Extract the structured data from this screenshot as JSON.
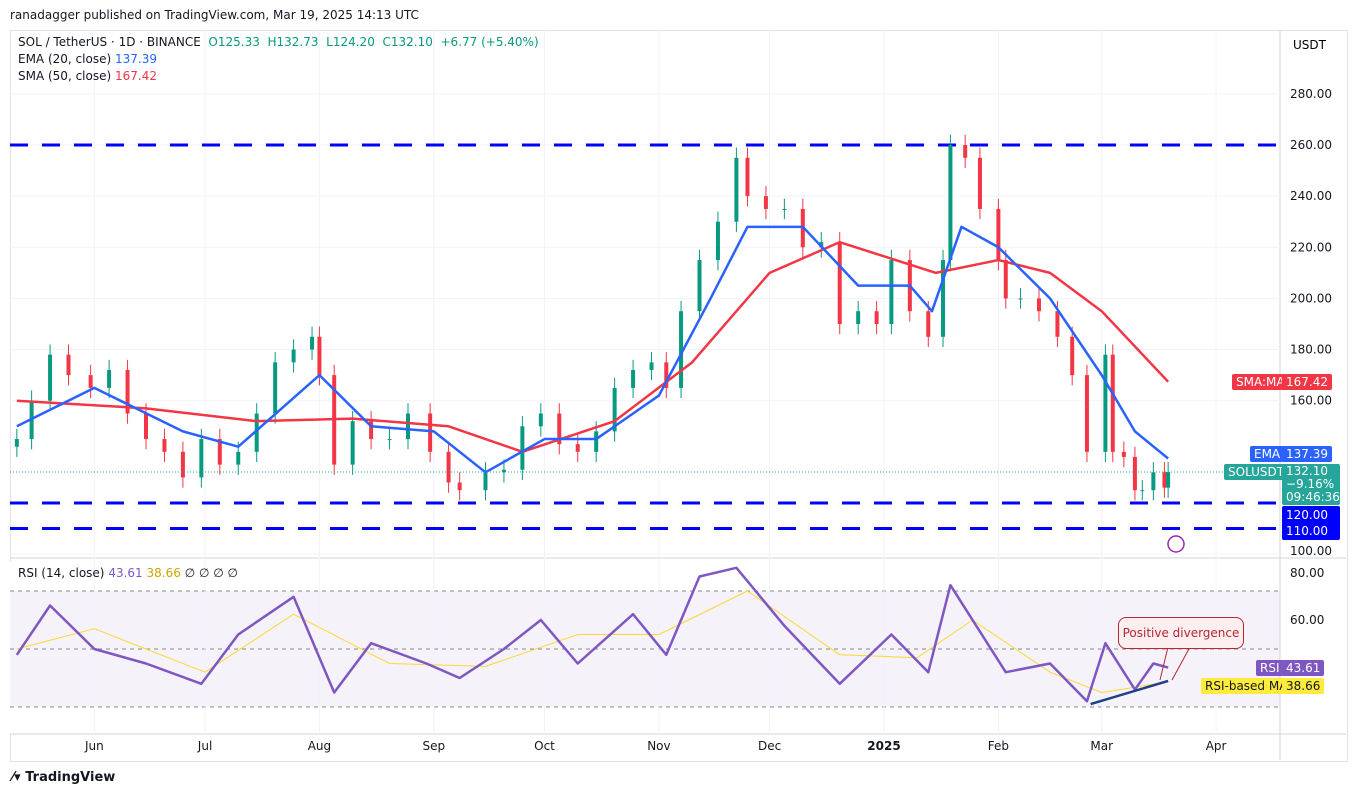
{
  "header": {
    "published": "ranadagger published on TradingView.com, Mar 19, 2025 14:13 UTC"
  },
  "legend": {
    "symbol": "SOL / TetherUS · 1D · BINANCE",
    "o": "O125.33",
    "h": "H132.73",
    "l": "L124.20",
    "c": "C132.10",
    "chg": "+6.77 (+5.40%)",
    "ema_label": "EMA (20, close)",
    "ema_val": "137.39",
    "sma_label": "SMA (50, close)",
    "sma_val": "167.42",
    "rsi_label": "RSI (14, close)",
    "rsi_val": "43.61",
    "rsi_ma_val": "38.66",
    "rsi_extra": "∅ ∅ ∅ ∅"
  },
  "axis": {
    "currency": "USDT"
  },
  "tags": {
    "sma_name": "SMA:MA",
    "sma": "167.42",
    "ema_name": "EMA",
    "ema": "137.39",
    "sym": "SOLUSDT",
    "price": "132.10",
    "pct": "−9.16%",
    "timer": "09:46:36",
    "lvl1": "120.00",
    "lvl2": "110.00",
    "rsi_name": "RSI",
    "rsi": "43.61",
    "rsima_name": "RSI-based MA",
    "rsima": "38.66"
  },
  "annotation": "Positive divergence",
  "brand": "TradingView",
  "colors": {
    "up": "#089981",
    "down": "#f23645",
    "ema": "#2962ff",
    "sma": "#f23645",
    "level": "#0000ff",
    "rsi": "#7e57c2",
    "rsi_ma": "#fdd835"
  },
  "chart_data": {
    "type": "candlestick",
    "price_ticks": [
      280,
      260,
      240,
      220,
      200,
      180,
      160,
      120,
      110,
      100
    ],
    "rsi_ticks": [
      80,
      60
    ],
    "x_ticks": [
      "Jun",
      "Jul",
      "Aug",
      "Sep",
      "Oct",
      "Nov",
      "Dec",
      "2025",
      "Feb",
      "Mar",
      "Apr"
    ],
    "levels": [
      260,
      120,
      110
    ],
    "closes": [
      [
        "2024-05-11",
        145
      ],
      [
        "2024-05-15",
        160
      ],
      [
        "2024-05-20",
        178
      ],
      [
        "2024-05-25",
        170
      ],
      [
        "2024-05-31",
        165
      ],
      [
        "2024-06-05",
        172
      ],
      [
        "2024-06-10",
        155
      ],
      [
        "2024-06-15",
        145
      ],
      [
        "2024-06-20",
        140
      ],
      [
        "2024-06-25",
        130
      ],
      [
        "2024-06-30",
        145
      ],
      [
        "2024-07-05",
        135
      ],
      [
        "2024-07-10",
        140
      ],
      [
        "2024-07-15",
        155
      ],
      [
        "2024-07-20",
        175
      ],
      [
        "2024-07-25",
        180
      ],
      [
        "2024-07-30",
        185
      ],
      [
        "2024-08-01",
        170
      ],
      [
        "2024-08-05",
        135
      ],
      [
        "2024-08-10",
        152
      ],
      [
        "2024-08-15",
        145
      ],
      [
        "2024-08-20",
        145
      ],
      [
        "2024-08-25",
        155
      ],
      [
        "2024-08-31",
        140
      ],
      [
        "2024-09-05",
        128
      ],
      [
        "2024-09-08",
        125
      ],
      [
        "2024-09-15",
        132
      ],
      [
        "2024-09-20",
        133
      ],
      [
        "2024-09-25",
        150
      ],
      [
        "2024-09-30",
        155
      ],
      [
        "2024-10-05",
        143
      ],
      [
        "2024-10-10",
        140
      ],
      [
        "2024-10-15",
        148
      ],
      [
        "2024-10-20",
        165
      ],
      [
        "2024-10-25",
        172
      ],
      [
        "2024-10-30",
        175
      ],
      [
        "2024-11-03",
        165
      ],
      [
        "2024-11-07",
        195
      ],
      [
        "2024-11-12",
        215
      ],
      [
        "2024-11-17",
        230
      ],
      [
        "2024-11-22",
        255
      ],
      [
        "2024-11-25",
        240
      ],
      [
        "2024-11-30",
        235
      ],
      [
        "2024-12-05",
        235
      ],
      [
        "2024-12-10",
        220
      ],
      [
        "2024-12-15",
        222
      ],
      [
        "2024-12-20",
        190
      ],
      [
        "2024-12-25",
        195
      ],
      [
        "2024-12-30",
        190
      ],
      [
        "2025-01-03",
        215
      ],
      [
        "2025-01-08",
        195
      ],
      [
        "2025-01-13",
        185
      ],
      [
        "2025-01-17",
        215
      ],
      [
        "2025-01-19",
        260
      ],
      [
        "2025-01-23",
        255
      ],
      [
        "2025-01-27",
        235
      ],
      [
        "2025-02-01",
        215
      ],
      [
        "2025-02-03",
        200
      ],
      [
        "2025-02-07",
        200
      ],
      [
        "2025-02-12",
        195
      ],
      [
        "2025-02-17",
        185
      ],
      [
        "2025-02-21",
        170
      ],
      [
        "2025-02-25",
        140
      ],
      [
        "2025-03-02",
        178
      ],
      [
        "2025-03-04",
        140
      ],
      [
        "2025-03-07",
        138
      ],
      [
        "2025-03-10",
        125
      ],
      [
        "2025-03-12",
        125
      ],
      [
        "2025-03-15",
        132
      ],
      [
        "2025-03-18",
        126
      ],
      [
        "2025-03-19",
        132.1
      ]
    ],
    "ema20": [
      [
        "2024-05-11",
        150
      ],
      [
        "2024-06-01",
        165
      ],
      [
        "2024-06-25",
        148
      ],
      [
        "2024-07-10",
        142
      ],
      [
        "2024-08-01",
        170
      ],
      [
        "2024-08-15",
        150
      ],
      [
        "2024-09-01",
        148
      ],
      [
        "2024-09-15",
        132
      ],
      [
        "2024-10-01",
        145
      ],
      [
        "2024-10-15",
        145
      ],
      [
        "2024-11-01",
        162
      ],
      [
        "2024-11-15",
        200
      ],
      [
        "2024-11-25",
        228
      ],
      [
        "2024-12-10",
        228
      ],
      [
        "2024-12-25",
        205
      ],
      [
        "2025-01-08",
        205
      ],
      [
        "2025-01-14",
        195
      ],
      [
        "2025-01-22",
        228
      ],
      [
        "2025-02-01",
        220
      ],
      [
        "2025-02-15",
        200
      ],
      [
        "2025-03-01",
        170
      ],
      [
        "2025-03-10",
        148
      ],
      [
        "2025-03-19",
        137.39
      ]
    ],
    "sma50": [
      [
        "2024-05-11",
        160
      ],
      [
        "2024-06-15",
        157
      ],
      [
        "2024-07-15",
        152
      ],
      [
        "2024-08-10",
        153
      ],
      [
        "2024-09-05",
        150
      ],
      [
        "2024-09-25",
        140
      ],
      [
        "2024-10-20",
        152
      ],
      [
        "2024-11-10",
        175
      ],
      [
        "2024-12-01",
        210
      ],
      [
        "2024-12-20",
        222
      ],
      [
        "2025-01-15",
        210
      ],
      [
        "2025-02-01",
        215
      ],
      [
        "2025-02-15",
        210
      ],
      [
        "2025-03-01",
        195
      ],
      [
        "2025-03-19",
        167.42
      ]
    ],
    "rsi": [
      [
        "2024-05-11",
        48
      ],
      [
        "2024-05-20",
        65
      ],
      [
        "2024-06-01",
        50
      ],
      [
        "2024-06-15",
        45
      ],
      [
        "2024-06-30",
        38
      ],
      [
        "2024-07-10",
        55
      ],
      [
        "2024-07-25",
        68
      ],
      [
        "2024-08-05",
        35
      ],
      [
        "2024-08-15",
        52
      ],
      [
        "2024-08-30",
        45
      ],
      [
        "2024-09-08",
        40
      ],
      [
        "2024-09-20",
        50
      ],
      [
        "2024-09-30",
        60
      ],
      [
        "2024-10-10",
        45
      ],
      [
        "2024-10-25",
        62
      ],
      [
        "2024-11-03",
        48
      ],
      [
        "2024-11-12",
        75
      ],
      [
        "2024-11-22",
        78
      ],
      [
        "2024-12-05",
        58
      ],
      [
        "2024-12-20",
        38
      ],
      [
        "2025-01-03",
        55
      ],
      [
        "2025-01-13",
        42
      ],
      [
        "2025-01-19",
        72
      ],
      [
        "2025-02-03",
        42
      ],
      [
        "2025-02-15",
        45
      ],
      [
        "2025-02-25",
        32
      ],
      [
        "2025-03-02",
        52
      ],
      [
        "2025-03-10",
        36
      ],
      [
        "2025-03-15",
        45
      ],
      [
        "2025-03-19",
        43.61
      ]
    ],
    "rsi_ma": [
      [
        "2024-05-11",
        50
      ],
      [
        "2024-06-01",
        57
      ],
      [
        "2024-07-01",
        42
      ],
      [
        "2024-07-25",
        62
      ],
      [
        "2024-08-20",
        45
      ],
      [
        "2024-09-15",
        44
      ],
      [
        "2024-10-10",
        55
      ],
      [
        "2024-11-01",
        55
      ],
      [
        "2024-11-25",
        70
      ],
      [
        "2024-12-20",
        48
      ],
      [
        "2025-01-10",
        47
      ],
      [
        "2025-01-25",
        60
      ],
      [
        "2025-02-15",
        42
      ],
      [
        "2025-03-01",
        35
      ],
      [
        "2025-03-19",
        38.66
      ]
    ],
    "divergence_line": [
      [
        "2025-02-26",
        31
      ],
      [
        "2025-03-19",
        39
      ]
    ]
  }
}
